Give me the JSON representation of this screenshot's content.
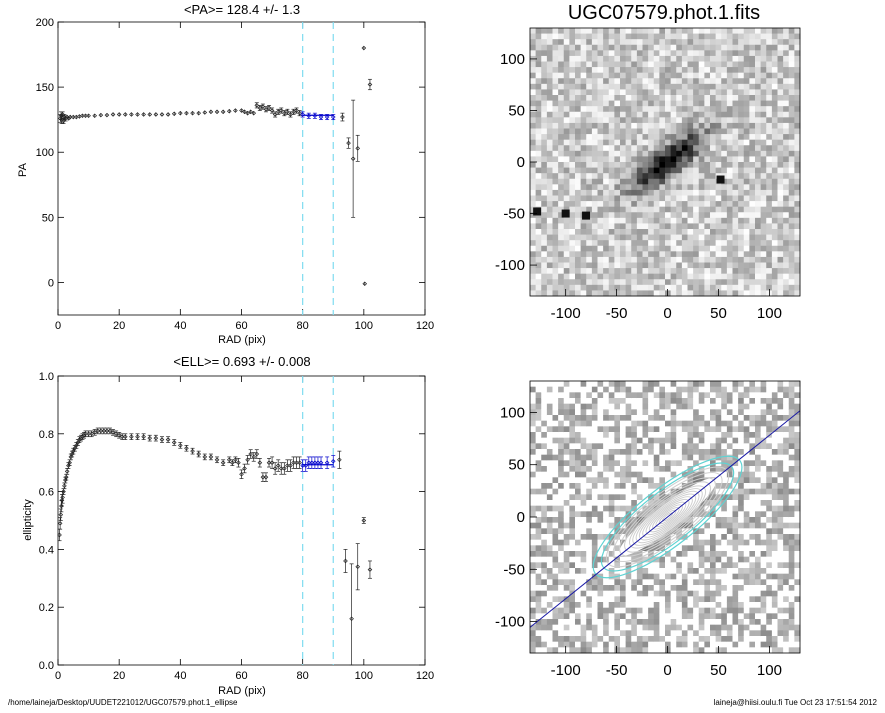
{
  "footer": {
    "path": "/home/laineja/Desktop/UUDET221012/UGC07579.phot.1_ellipse",
    "stamp": "laineja@hiisi.oulu.fi  Tue Oct 23 17:51:54 2012"
  },
  "chart_data": [
    {
      "type": "scatter",
      "title": "<PA>= 128.4 +/-   1.3",
      "xlabel": "RAD (pix)",
      "ylabel": "PA",
      "xlim": [
        0,
        120
      ],
      "ylim": [
        -25,
        200
      ],
      "xticks": [
        0,
        20,
        40,
        60,
        80,
        100,
        120
      ],
      "yticks": [
        0,
        50,
        100,
        150,
        200
      ],
      "vlines": [
        80,
        90
      ],
      "vline_color": "#7fdcf0",
      "fit_color": "#0000cc",
      "fit_range": [
        80,
        90
      ],
      "mean": 128.4,
      "series": [
        {
          "points": [
            [
              0.8,
              126,
              3
            ],
            [
              1.0,
              128,
              3
            ],
            [
              1.2,
              125,
              3
            ],
            [
              1.5,
              129,
              2
            ],
            [
              1.8,
              124,
              2
            ],
            [
              2.1,
              127,
              2
            ],
            [
              2.5,
              126,
              2
            ],
            [
              3,
              127,
              1.5
            ],
            [
              3.5,
              126,
              1.5
            ],
            [
              4,
              127,
              1.5
            ],
            [
              5,
              127,
              1
            ],
            [
              6,
              127,
              1
            ],
            [
              7,
              127.5,
              1
            ],
            [
              8,
              128,
              1
            ],
            [
              9,
              128,
              1
            ],
            [
              10,
              128,
              1
            ],
            [
              12,
              128,
              1
            ],
            [
              14,
              128.5,
              1
            ],
            [
              16,
              128.5,
              1
            ],
            [
              18,
              129,
              1
            ],
            [
              20,
              129,
              1
            ],
            [
              22,
              129,
              1
            ],
            [
              24,
              129,
              1
            ],
            [
              26,
              129,
              1
            ],
            [
              28,
              129,
              1
            ],
            [
              30,
              129,
              1
            ],
            [
              32,
              129,
              1
            ],
            [
              34,
              129,
              1
            ],
            [
              36,
              129,
              1
            ],
            [
              38,
              129.5,
              1
            ],
            [
              40,
              130,
              1
            ],
            [
              42,
              130,
              1
            ],
            [
              44,
              130,
              1
            ],
            [
              46,
              130,
              1
            ],
            [
              48,
              130.5,
              1
            ],
            [
              50,
              131,
              1
            ],
            [
              52,
              131,
              1
            ],
            [
              54,
              131,
              1
            ],
            [
              56,
              131.5,
              1
            ],
            [
              58,
              132,
              1
            ],
            [
              60,
              132,
              1.5
            ],
            [
              61,
              131,
              1.5
            ],
            [
              62,
              130,
              1.5
            ],
            [
              63,
              131,
              1.5
            ],
            [
              64,
              130,
              1.5
            ],
            [
              65,
              136,
              2
            ],
            [
              66,
              134,
              2
            ],
            [
              67,
              135,
              2
            ],
            [
              68,
              133,
              2
            ],
            [
              69,
              134,
              2
            ],
            [
              70,
              132,
              2
            ],
            [
              71,
              129,
              2
            ],
            [
              72,
              131,
              2
            ],
            [
              73,
              132,
              2
            ],
            [
              74,
              130,
              2
            ],
            [
              75,
              131,
              2
            ],
            [
              76,
              129,
              2
            ],
            [
              77,
              131,
              2
            ],
            [
              78,
              132,
              2
            ],
            [
              79,
              130,
              2
            ],
            [
              80,
              129,
              2
            ],
            [
              82,
              128,
              2
            ],
            [
              84,
              128,
              2
            ],
            [
              86,
              127,
              2
            ],
            [
              88,
              127,
              2
            ],
            [
              90,
              127,
              2
            ],
            [
              93,
              127,
              3
            ],
            [
              95,
              107,
              4
            ],
            [
              96.5,
              95,
              45
            ],
            [
              98,
              103,
              10
            ],
            [
              100,
              180,
              1
            ],
            [
              100.3,
              -1,
              1
            ],
            [
              102,
              152,
              4
            ]
          ]
        }
      ]
    },
    {
      "type": "scatter",
      "title": "<ELL>= 0.693 +/-  0.008",
      "xlabel": "RAD (pix)",
      "ylabel": "ellipticity",
      "xlim": [
        0,
        120
      ],
      "ylim": [
        0.0,
        1.0
      ],
      "xticks": [
        0,
        20,
        40,
        60,
        80,
        100,
        120
      ],
      "yticks": [
        0.0,
        0.2,
        0.4,
        0.6,
        0.8,
        1.0
      ],
      "vlines": [
        80,
        90
      ],
      "vline_color": "#7fdcf0",
      "fit_color": "#0000cc",
      "fit_range": [
        80,
        90
      ],
      "mean": 0.693,
      "series": [
        {
          "points": [
            [
              0.5,
              0.45,
              0.02
            ],
            [
              0.7,
              0.49,
              0.02
            ],
            [
              0.9,
              0.52,
              0.02
            ],
            [
              1.1,
              0.55,
              0.02
            ],
            [
              1.3,
              0.57,
              0.02
            ],
            [
              1.5,
              0.58,
              0.02
            ],
            [
              1.8,
              0.6,
              0.01
            ],
            [
              2.1,
              0.62,
              0.01
            ],
            [
              2.4,
              0.64,
              0.01
            ],
            [
              2.7,
              0.65,
              0.01
            ],
            [
              3,
              0.67,
              0.01
            ],
            [
              3.4,
              0.69,
              0.01
            ],
            [
              3.8,
              0.7,
              0.01
            ],
            [
              4.2,
              0.72,
              0.01
            ],
            [
              4.6,
              0.73,
              0.01
            ],
            [
              5,
              0.74,
              0.01
            ],
            [
              5.5,
              0.75,
              0.01
            ],
            [
              6,
              0.76,
              0.01
            ],
            [
              6.5,
              0.77,
              0.01
            ],
            [
              7,
              0.78,
              0.01
            ],
            [
              7.5,
              0.785,
              0.01
            ],
            [
              8,
              0.79,
              0.01
            ],
            [
              8.5,
              0.795,
              0.01
            ],
            [
              9,
              0.8,
              0.01
            ],
            [
              10,
              0.8,
              0.01
            ],
            [
              11,
              0.8,
              0.01
            ],
            [
              12,
              0.805,
              0.01
            ],
            [
              13,
              0.81,
              0.01
            ],
            [
              14,
              0.81,
              0.01
            ],
            [
              15,
              0.81,
              0.01
            ],
            [
              16,
              0.81,
              0.01
            ],
            [
              17,
              0.81,
              0.01
            ],
            [
              18,
              0.805,
              0.01
            ],
            [
              19,
              0.8,
              0.01
            ],
            [
              20,
              0.795,
              0.01
            ],
            [
              21,
              0.79,
              0.01
            ],
            [
              22,
              0.79,
              0.01
            ],
            [
              24,
              0.79,
              0.01
            ],
            [
              26,
              0.79,
              0.01
            ],
            [
              28,
              0.79,
              0.01
            ],
            [
              30,
              0.785,
              0.01
            ],
            [
              32,
              0.785,
              0.01
            ],
            [
              34,
              0.78,
              0.01
            ],
            [
              36,
              0.78,
              0.01
            ],
            [
              38,
              0.77,
              0.01
            ],
            [
              40,
              0.76,
              0.01
            ],
            [
              42,
              0.75,
              0.01
            ],
            [
              44,
              0.74,
              0.01
            ],
            [
              46,
              0.73,
              0.01
            ],
            [
              48,
              0.72,
              0.01
            ],
            [
              50,
              0.72,
              0.01
            ],
            [
              52,
              0.71,
              0.01
            ],
            [
              54,
              0.7,
              0.01
            ],
            [
              56,
              0.71,
              0.01
            ],
            [
              57,
              0.7,
              0.01
            ],
            [
              58,
              0.71,
              0.01
            ],
            [
              59,
              0.7,
              0.015
            ],
            [
              60,
              0.66,
              0.015
            ],
            [
              61,
              0.68,
              0.015
            ],
            [
              62,
              0.71,
              0.015
            ],
            [
              63,
              0.73,
              0.015
            ],
            [
              64,
              0.72,
              0.015
            ],
            [
              65,
              0.73,
              0.015
            ],
            [
              66,
              0.7,
              0.015
            ],
            [
              67,
              0.65,
              0.015
            ],
            [
              68,
              0.65,
              0.015
            ],
            [
              69,
              0.7,
              0.015
            ],
            [
              70,
              0.7,
              0.02
            ],
            [
              71,
              0.68,
              0.02
            ],
            [
              72,
              0.69,
              0.02
            ],
            [
              73,
              0.68,
              0.02
            ],
            [
              74,
              0.68,
              0.02
            ],
            [
              75,
              0.69,
              0.02
            ],
            [
              76,
              0.69,
              0.02
            ],
            [
              77,
              0.7,
              0.02
            ],
            [
              78,
              0.7,
              0.02
            ],
            [
              79,
              0.7,
              0.02
            ],
            [
              80,
              0.69,
              0.02
            ],
            [
              81,
              0.69,
              0.02
            ],
            [
              82,
              0.7,
              0.02
            ],
            [
              83,
              0.7,
              0.02
            ],
            [
              84,
              0.7,
              0.02
            ],
            [
              85,
              0.7,
              0.02
            ],
            [
              86,
              0.7,
              0.02
            ],
            [
              88,
              0.7,
              0.02
            ],
            [
              90,
              0.705,
              0.02
            ],
            [
              92,
              0.71,
              0.03
            ],
            [
              94,
              0.36,
              0.04
            ],
            [
              96,
              0.16,
              0.19
            ],
            [
              98,
              0.34,
              0.08
            ],
            [
              100,
              0.5,
              0.01
            ],
            [
              102,
              0.33,
              0.03
            ]
          ]
        }
      ]
    },
    {
      "type": "heatmap",
      "title": "UGC07579.phot.1.fits",
      "xlim": [
        -135,
        130
      ],
      "ylim": [
        -130,
        130
      ],
      "xticks": [
        -100,
        -50,
        0,
        50,
        100
      ],
      "yticks": [
        -100,
        -50,
        0,
        50,
        100
      ],
      "galaxy_pa_deg": 38,
      "stars": [
        [
          -80,
          -52
        ],
        [
          52,
          -17
        ],
        [
          -128,
          -48
        ],
        [
          -100,
          -50
        ]
      ]
    },
    {
      "type": "heatmap",
      "xlim": [
        -135,
        130
      ],
      "ylim": [
        -130,
        130
      ],
      "xticks": [
        -100,
        -50,
        0,
        50,
        100
      ],
      "yticks": [
        -100,
        -50,
        0,
        50,
        100
      ],
      "galaxy_pa_deg": 38,
      "contour_color": "#cfcfcf",
      "fit_contour_color": "#5fd3d3",
      "major_axis_color": "#1a1aa6"
    }
  ]
}
